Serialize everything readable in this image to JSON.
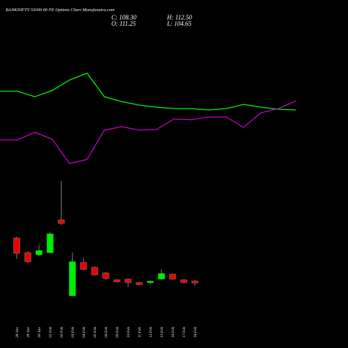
{
  "chart_data": [
    {
      "type": "line",
      "title": "BANKNIFTY 55000.00 PE Options Chart Munafasutra.com",
      "info": [
        "C: 108.30",
        "H: 112.50",
        "O: 111.25",
        "L: 104.65"
      ],
      "ylim": [
        0,
        500
      ],
      "series": [
        {
          "color": "#00ff00",
          "values": [
            369,
            369,
            361,
            370,
            385,
            395,
            361,
            354,
            349,
            346,
            344,
            344,
            342,
            344,
            350,
            346,
            343,
            342
          ]
        },
        {
          "color": "#cc00cc",
          "values": [
            299,
            299,
            310,
            300,
            265,
            271,
            313,
            318,
            313,
            314,
            329,
            328,
            332,
            332,
            317,
            338,
            344,
            355
          ]
        }
      ]
    },
    {
      "type": "candlestick",
      "categories": [
        "28 Jan",
        "29 Jan",
        "30 Jan",
        "01 Feb",
        "02 Feb",
        "03 Feb",
        "04 Feb",
        "05 Feb",
        "06 Feb",
        "09 Feb",
        "10 Feb",
        "11 Feb",
        "12 Feb",
        "13 Feb",
        "16 Feb",
        "17 Feb",
        "18 Feb"
      ],
      "open": [
        173,
        152,
        149,
        152,
        199,
        90,
        138,
        131,
        123,
        113,
        114,
        109,
        109,
        114,
        121,
        113,
        111.25
      ],
      "high": [
        175,
        154,
        163,
        181,
        255,
        152,
        145,
        132,
        124,
        114,
        115,
        110,
        112,
        128,
        122,
        114,
        112.5
      ],
      "low": [
        143,
        137,
        147,
        151,
        192,
        90,
        127,
        119,
        113,
        109,
        103,
        105,
        107,
        113,
        113,
        108,
        104.65
      ],
      "close": [
        151,
        139,
        155,
        179,
        194,
        139,
        128,
        120,
        115,
        110,
        109,
        106,
        111,
        122,
        114,
        109,
        108.3
      ],
      "up_color": "#00ee00",
      "down_color": "#ee0000",
      "ylim": [
        15,
        515
      ]
    }
  ]
}
